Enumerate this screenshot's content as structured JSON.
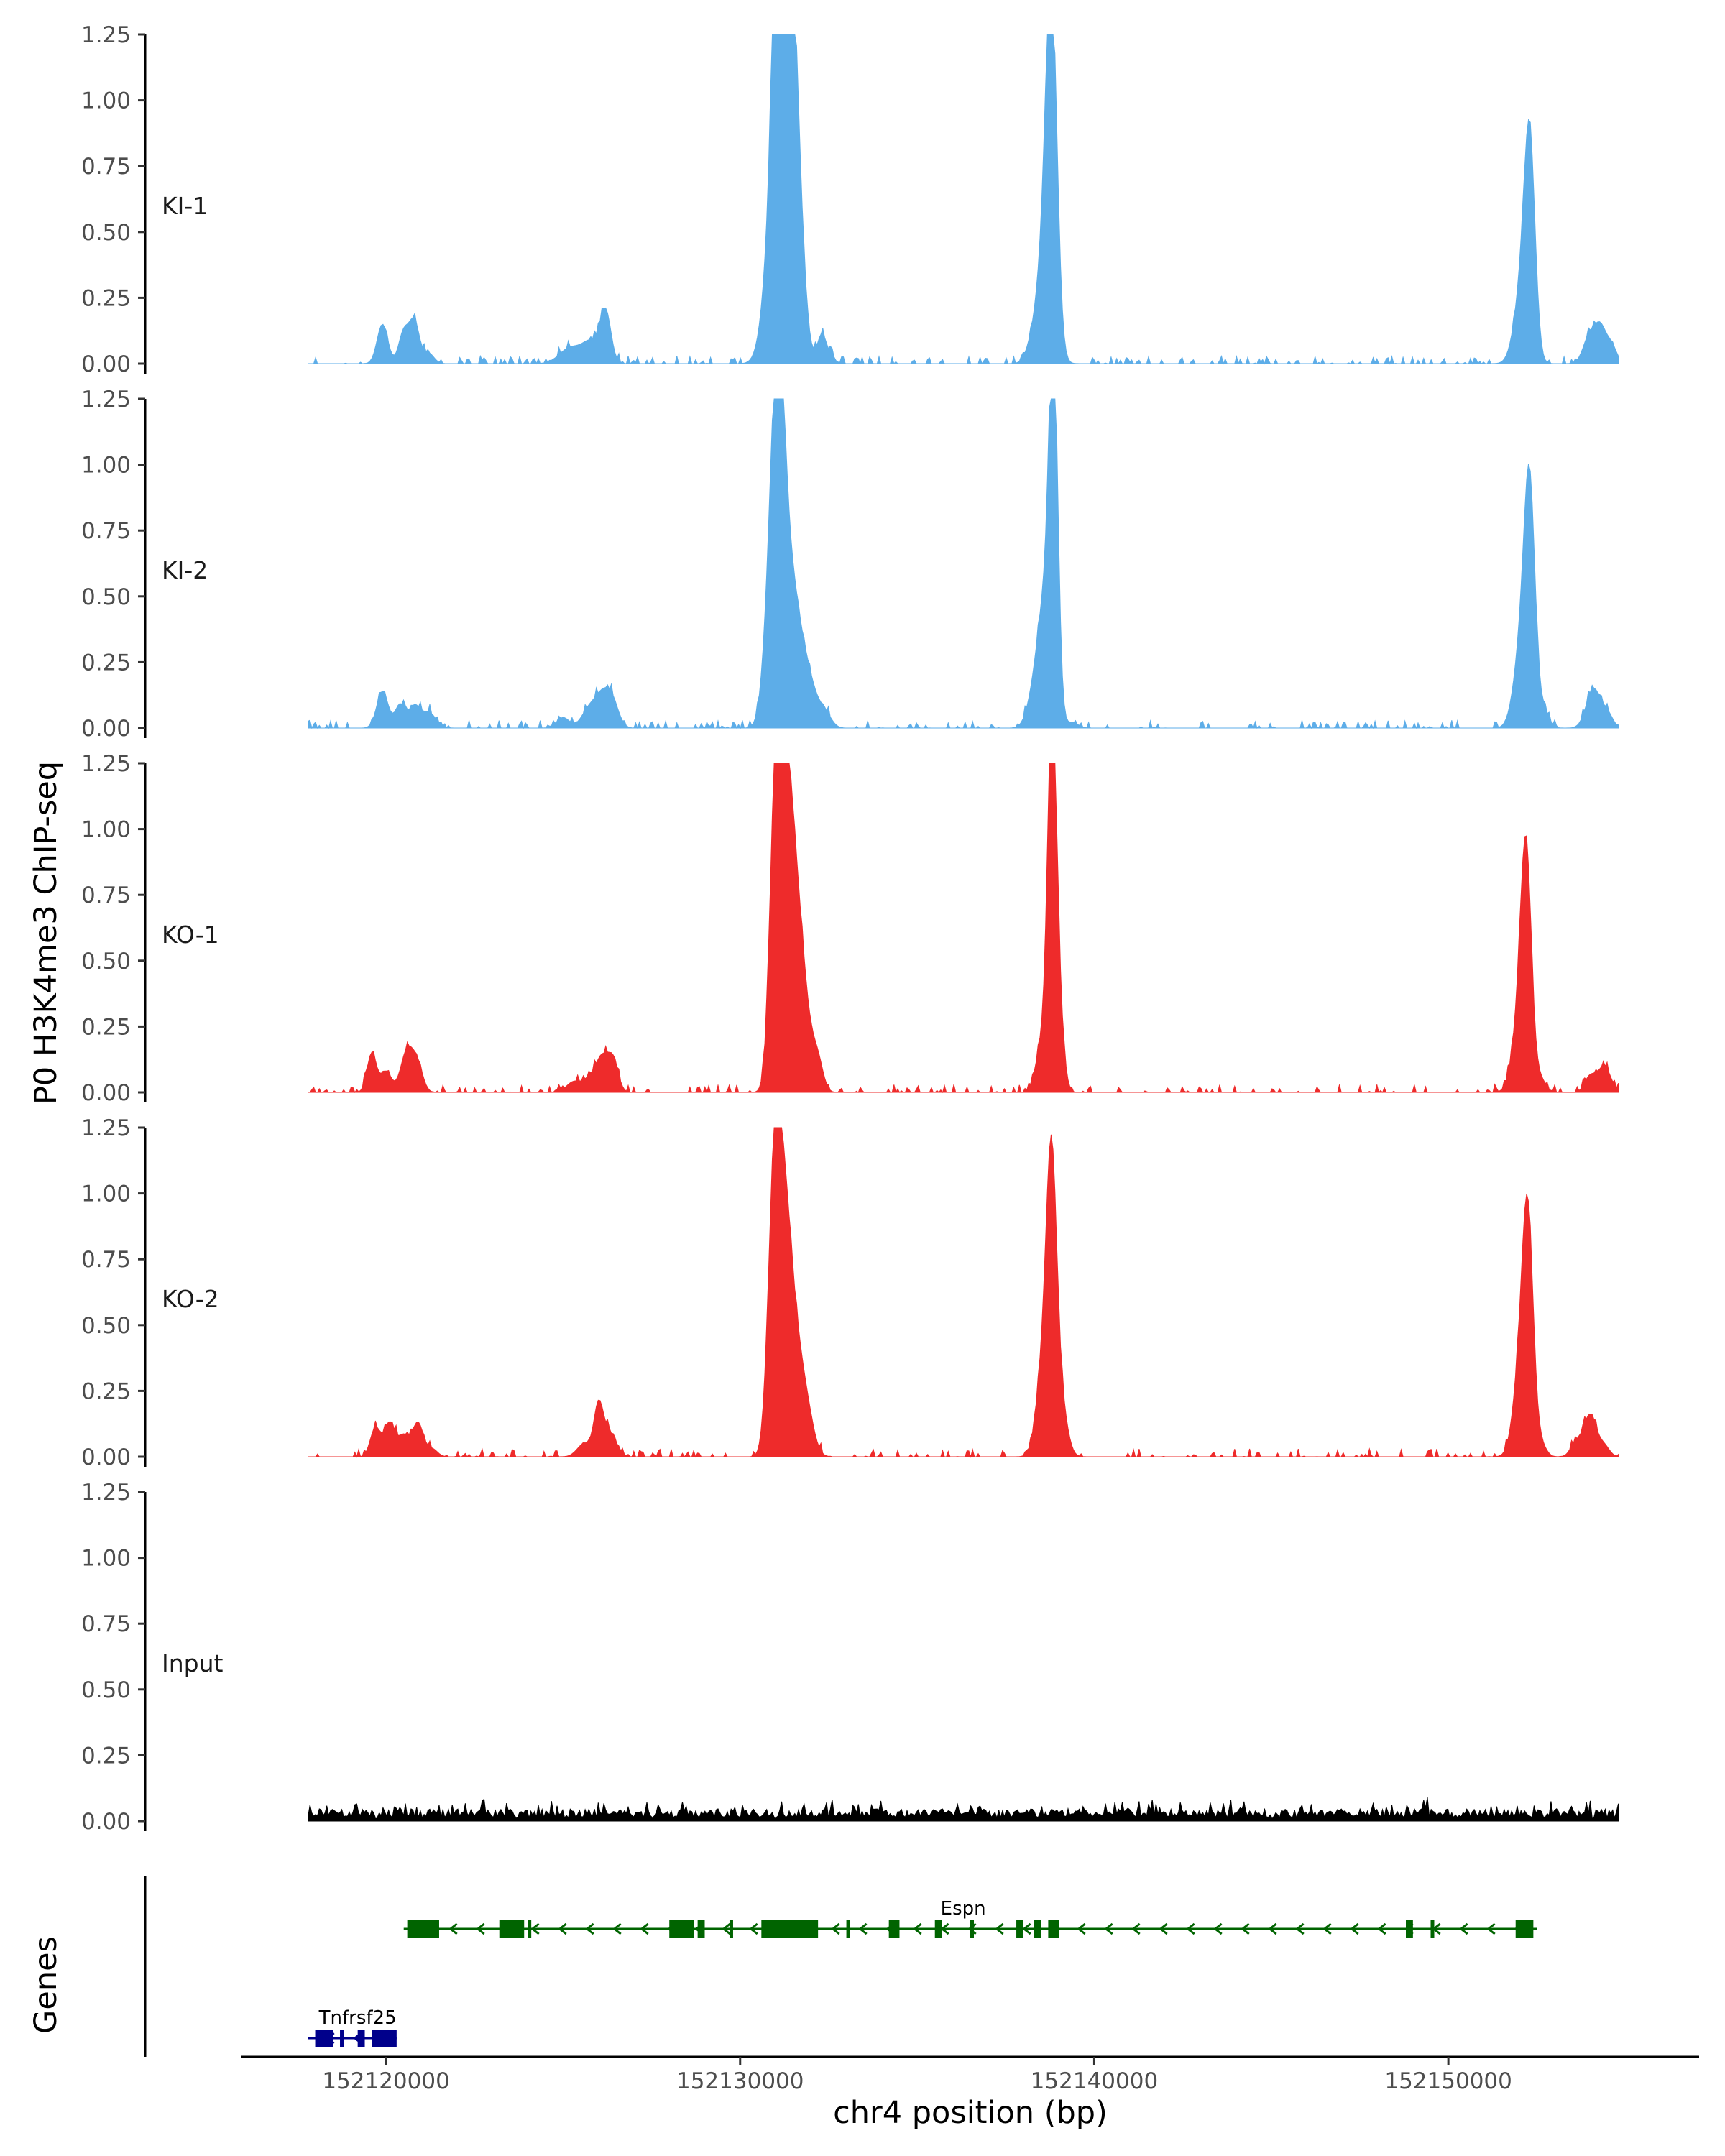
{
  "chart_data": {
    "type": "area",
    "y_axis_title": "P0 H3K4me3 ChIP-seq",
    "x_axis_title": "chr4 position (bp)",
    "genes_axis_title": "Genes",
    "x_range": [
      152116000,
      152157000
    ],
    "x_ticks": [
      152120000,
      152130000,
      152140000,
      152150000
    ],
    "x_tick_labels": [
      "152120000",
      "152130000",
      "152140000",
      "152150000"
    ],
    "y_range": [
      0,
      1.25
    ],
    "y_ticks": [
      0,
      0.25,
      0.5,
      0.75,
      1.0,
      1.25
    ],
    "y_tick_labels": [
      "0.00",
      "0.25",
      "0.50",
      "0.75",
      "1.00",
      "1.25"
    ],
    "data_start": 152117800,
    "data_end": 152154800,
    "colors": {
      "KI": "#5dade8",
      "KO": "#ee2b2b",
      "Input": "#000000",
      "Espn": "#006400",
      "Tnfrsf25": "#00008b"
    },
    "tracks": [
      {
        "name": "KI-1",
        "color": "#5dade8",
        "peaks": [
          [
            152119900,
            0.15,
            150
          ],
          [
            152120500,
            0.12,
            140
          ],
          [
            152120800,
            0.16,
            140
          ],
          [
            152121200,
            0.04,
            150
          ],
          [
            152125200,
            0.06,
            300
          ],
          [
            152125800,
            0.08,
            250
          ],
          [
            152126200,
            0.19,
            150
          ],
          [
            152131100,
            1.19,
            150
          ],
          [
            152131350,
            1.04,
            220
          ],
          [
            152131000,
            0.7,
            260
          ],
          [
            152131550,
            0.6,
            220
          ],
          [
            152132300,
            0.1,
            120
          ],
          [
            152132500,
            0.03,
            150
          ],
          [
            152138800,
            1.08,
            150
          ],
          [
            152138650,
            0.5,
            220
          ],
          [
            152138250,
            0.06,
            180
          ],
          [
            152152300,
            0.72,
            150
          ],
          [
            152152100,
            0.3,
            220
          ],
          [
            152154000,
            0.11,
            180
          ],
          [
            152154300,
            0.12,
            150
          ],
          [
            152154600,
            0.07,
            150
          ]
        ]
      },
      {
        "name": "KI-2",
        "color": "#5dade8",
        "peaks": [
          [
            152119900,
            0.14,
            160
          ],
          [
            152120400,
            0.09,
            140
          ],
          [
            152120800,
            0.08,
            150
          ],
          [
            152121200,
            0.06,
            200
          ],
          [
            152125000,
            0.04,
            180
          ],
          [
            152125700,
            0.06,
            200
          ],
          [
            152126100,
            0.12,
            220
          ],
          [
            152126400,
            0.08,
            180
          ],
          [
            152131100,
            0.9,
            170
          ],
          [
            152130900,
            0.6,
            200
          ],
          [
            152131400,
            0.55,
            260
          ],
          [
            152131900,
            0.18,
            250
          ],
          [
            152132400,
            0.05,
            180
          ],
          [
            152138850,
            1.2,
            120
          ],
          [
            152138650,
            0.5,
            220
          ],
          [
            152138300,
            0.1,
            200
          ],
          [
            152139400,
            0.02,
            150
          ],
          [
            152152300,
            0.76,
            150
          ],
          [
            152152100,
            0.35,
            220
          ],
          [
            152152700,
            0.06,
            150
          ],
          [
            152154100,
            0.15,
            200
          ],
          [
            152154500,
            0.05,
            150
          ]
        ]
      },
      {
        "name": "KO-1",
        "color": "#ee2b2b",
        "peaks": [
          [
            152119600,
            0.15,
            130
          ],
          [
            152120000,
            0.08,
            150
          ],
          [
            152120600,
            0.16,
            180
          ],
          [
            152120900,
            0.09,
            150
          ],
          [
            152125300,
            0.04,
            200
          ],
          [
            152125800,
            0.06,
            200
          ],
          [
            152126100,
            0.11,
            150
          ],
          [
            152126400,
            0.13,
            150
          ],
          [
            152131000,
            1.0,
            160
          ],
          [
            152131250,
            0.78,
            200
          ],
          [
            152131500,
            0.6,
            230
          ],
          [
            152131800,
            0.25,
            230
          ],
          [
            152132200,
            0.1,
            150
          ],
          [
            152138800,
            1.17,
            120
          ],
          [
            152138550,
            0.2,
            180
          ],
          [
            152138950,
            0.4,
            150
          ],
          [
            152152200,
            0.82,
            150
          ],
          [
            152152000,
            0.25,
            200
          ],
          [
            152152600,
            0.05,
            150
          ],
          [
            152154000,
            0.06,
            150
          ],
          [
            152154400,
            0.1,
            180
          ]
        ]
      },
      {
        "name": "KO-2",
        "color": "#ee2b2b",
        "peaks": [
          [
            152119700,
            0.11,
            140
          ],
          [
            152120100,
            0.13,
            150
          ],
          [
            152120500,
            0.08,
            150
          ],
          [
            152120900,
            0.13,
            150
          ],
          [
            152121300,
            0.03,
            150
          ],
          [
            152125600,
            0.05,
            200
          ],
          [
            152126000,
            0.18,
            130
          ],
          [
            152126300,
            0.09,
            200
          ],
          [
            152130950,
            0.86,
            170
          ],
          [
            152131200,
            0.72,
            200
          ],
          [
            152131500,
            0.45,
            250
          ],
          [
            152131900,
            0.12,
            200
          ],
          [
            152138800,
            0.9,
            140
          ],
          [
            152138600,
            0.4,
            200
          ],
          [
            152139050,
            0.2,
            180
          ],
          [
            152152250,
            0.77,
            150
          ],
          [
            152152050,
            0.35,
            200
          ],
          [
            152152600,
            0.05,
            150
          ],
          [
            152153600,
            0.05,
            150
          ],
          [
            152154000,
            0.16,
            180
          ],
          [
            152154400,
            0.04,
            150
          ]
        ]
      },
      {
        "name": "Input",
        "color": "#000000",
        "peaks": []
      }
    ],
    "genes": [
      {
        "name": "Espn",
        "color": "#006400",
        "row": 0,
        "strand": "-",
        "start": 152120500,
        "end": 152152500,
        "label_x": 152136300,
        "exons": [
          [
            152120600,
            152121500
          ],
          [
            152123200,
            152123900
          ],
          [
            152124000,
            152124100
          ],
          [
            152128000,
            152128700
          ],
          [
            152128800,
            152129000
          ],
          [
            152129700,
            152129800
          ],
          [
            152130600,
            152132200
          ],
          [
            152133000,
            152133050
          ],
          [
            152134200,
            152134500
          ],
          [
            152135500,
            152135700
          ],
          [
            152136500,
            152136600
          ],
          [
            152137800,
            152138000
          ],
          [
            152138300,
            152138500
          ],
          [
            152138700,
            152139000
          ],
          [
            152148800,
            152149000
          ],
          [
            152149500,
            152149600
          ],
          [
            152151900,
            152152400
          ]
        ]
      },
      {
        "name": "Tnfrsf25",
        "color": "#00008b",
        "row": 1,
        "strand": "-",
        "start": 152117800,
        "end": 152120300,
        "label_x": 152119200,
        "exons": [
          [
            152118000,
            152118500
          ],
          [
            152118700,
            152118800
          ],
          [
            152119200,
            152119400
          ],
          [
            152119600,
            152120300
          ]
        ]
      }
    ]
  }
}
